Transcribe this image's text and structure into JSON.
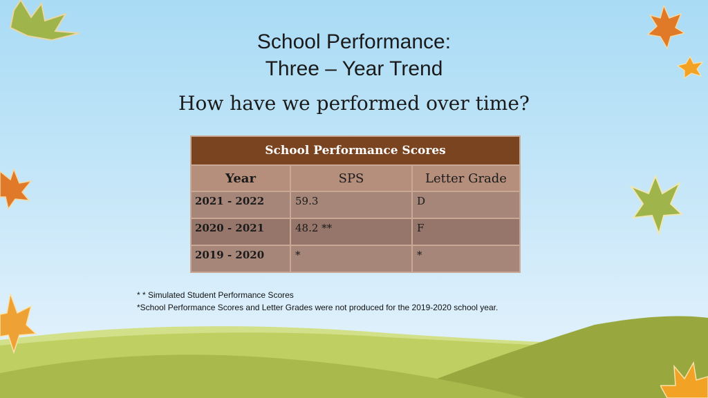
{
  "title_line1": "School Performance:",
  "title_line2": "Three – Year Trend",
  "subtitle": "How have we performed over time?",
  "table": {
    "caption": "School Performance Scores",
    "headers": [
      "Year",
      "SPS",
      "Letter Grade"
    ],
    "rows": [
      {
        "year": "2021 - 2022",
        "sps": "59.3",
        "grade": "D"
      },
      {
        "year": "2020 - 2021",
        "sps": "48.2 **",
        "grade": "F"
      },
      {
        "year": "2019 - 2020",
        "sps": "*",
        "grade": "*"
      }
    ]
  },
  "notes": [
    "* * Simulated Student Performance Scores",
    "*School Performance Scores and Letter Grades were not produced for the 2019-2020 school year."
  ],
  "colors": {
    "header": "#7b4420",
    "row": "#a7867a",
    "hill_light": "#c5d66b",
    "hill_dark": "#98a83f"
  }
}
